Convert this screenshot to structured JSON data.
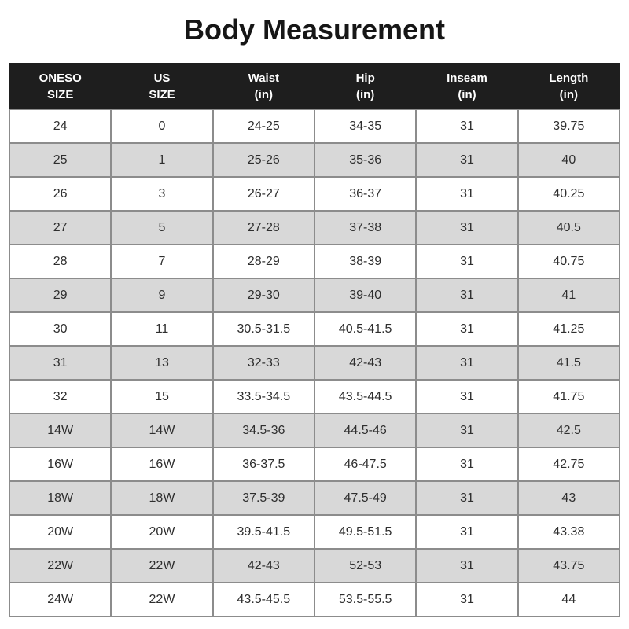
{
  "title": "Body Measurement",
  "chart_data": {
    "type": "table",
    "title": "Body Measurement",
    "columns": [
      "ONESO SIZE",
      "US SIZE",
      "Waist (in)",
      "Hip (in)",
      "Inseam (in)",
      "Length (in)"
    ],
    "header_lines": [
      [
        "ONESO",
        "SIZE"
      ],
      [
        "US",
        "SIZE"
      ],
      [
        "Waist",
        "(in)"
      ],
      [
        "Hip",
        "(in)"
      ],
      [
        "Inseam",
        "(in)"
      ],
      [
        "Length",
        "(in)"
      ]
    ],
    "rows": [
      [
        "24",
        "0",
        "24-25",
        "34-35",
        "31",
        "39.75"
      ],
      [
        "25",
        "1",
        "25-26",
        "35-36",
        "31",
        "40"
      ],
      [
        "26",
        "3",
        "26-27",
        "36-37",
        "31",
        "40.25"
      ],
      [
        "27",
        "5",
        "27-28",
        "37-38",
        "31",
        "40.5"
      ],
      [
        "28",
        "7",
        "28-29",
        "38-39",
        "31",
        "40.75"
      ],
      [
        "29",
        "9",
        "29-30",
        "39-40",
        "31",
        "41"
      ],
      [
        "30",
        "11",
        "30.5-31.5",
        "40.5-41.5",
        "31",
        "41.25"
      ],
      [
        "31",
        "13",
        "32-33",
        "42-43",
        "31",
        "41.5"
      ],
      [
        "32",
        "15",
        "33.5-34.5",
        "43.5-44.5",
        "31",
        "41.75"
      ],
      [
        "14W",
        "14W",
        "34.5-36",
        "44.5-46",
        "31",
        "42.5"
      ],
      [
        "16W",
        "16W",
        "36-37.5",
        "46-47.5",
        "31",
        "42.75"
      ],
      [
        "18W",
        "18W",
        "37.5-39",
        "47.5-49",
        "31",
        "43"
      ],
      [
        "20W",
        "20W",
        "39.5-41.5",
        "49.5-51.5",
        "31",
        "43.38"
      ],
      [
        "22W",
        "22W",
        "42-43",
        "52-53",
        "31",
        "43.75"
      ],
      [
        "24W",
        "22W",
        "43.5-45.5",
        "53.5-55.5",
        "31",
        "44"
      ]
    ]
  },
  "colors": {
    "header_bg": "#1e1e1e",
    "header_text": "#ffffff",
    "row_bg": "#ffffff",
    "row_alt_bg": "#d8d8d8",
    "border": "#8c8c8c",
    "text": "#2e2e2e",
    "title": "#161616"
  }
}
